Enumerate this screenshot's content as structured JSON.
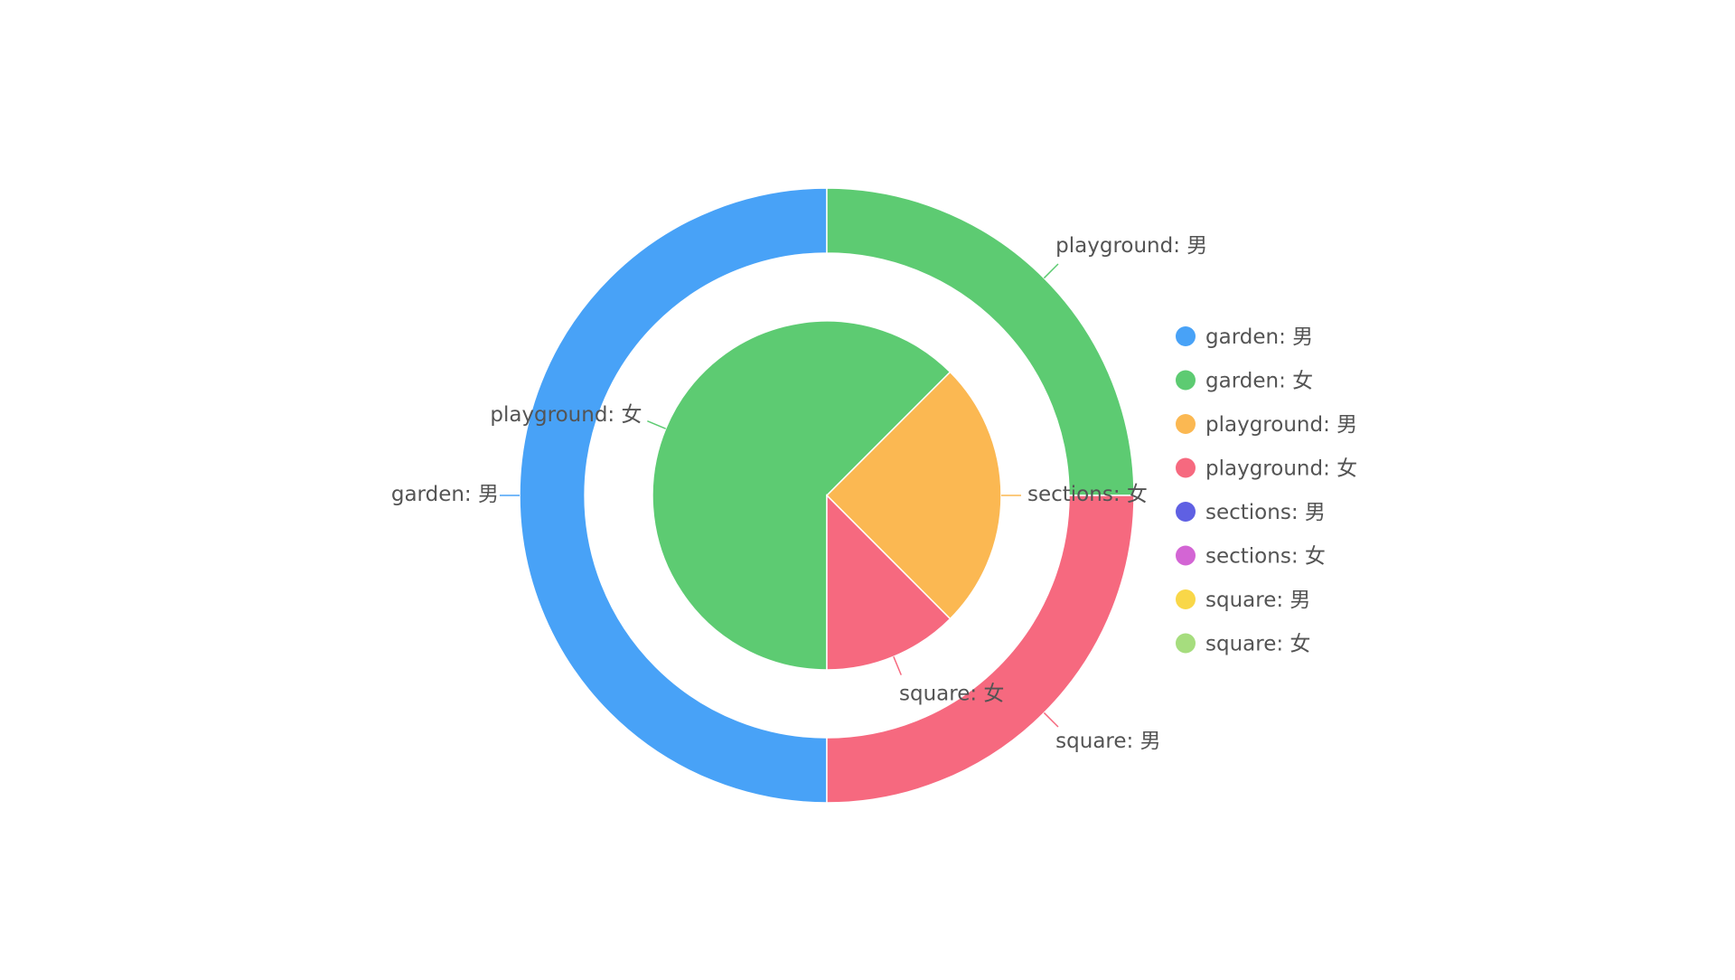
{
  "chart_data": {
    "type": "pie",
    "title": "",
    "rings": [
      {
        "name": "",
        "slices": [
          {
            "label": "garden: 男",
            "value": 50,
            "color": "#48a2f7"
          },
          {
            "label": "playground: 男",
            "value": 25,
            "color": "#5dcb72"
          },
          {
            "label": "square: 男",
            "value": 25,
            "color": "#f6697f"
          }
        ]
      },
      {
        "name": "",
        "slices": [
          {
            "label": "playground: 女",
            "value": 62.5,
            "color": "#5dcb72"
          },
          {
            "label": "sections: 女",
            "value": 25,
            "color": "#fbb852"
          },
          {
            "label": "square: 女",
            "value": 12.5,
            "color": "#f6697f"
          }
        ]
      }
    ],
    "legend": {
      "position": "right",
      "items": [
        {
          "label": "garden: 男",
          "color": "#48a2f7"
        },
        {
          "label": "garden: 女",
          "color": "#5dcb72"
        },
        {
          "label": "playground: 男",
          "color": "#fbb852"
        },
        {
          "label": "playground: 女",
          "color": "#f6697f"
        },
        {
          "label": "sections: 男",
          "color": "#5f60e3"
        },
        {
          "label": "sections: 女",
          "color": "#d365d4"
        },
        {
          "label": "square: 男",
          "color": "#f9d748"
        },
        {
          "label": "square: 女",
          "color": "#a6dd7e"
        }
      ]
    }
  }
}
